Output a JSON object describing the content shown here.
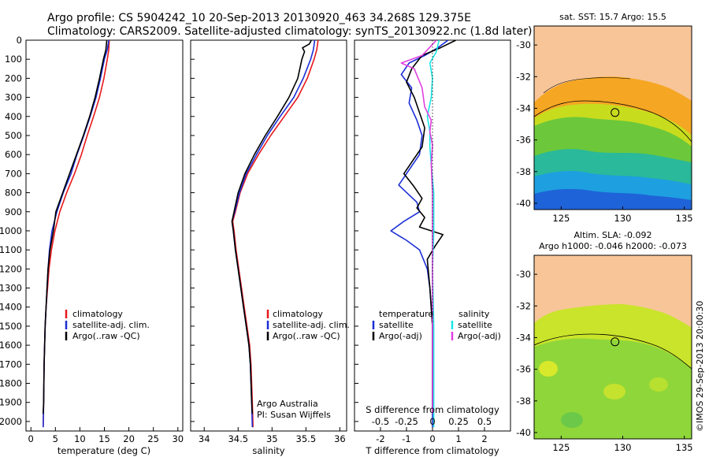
{
  "header": {
    "line1": "Argo profile: CS 5904242_10 20-Sep-2013 20130920_463 34.268S 129.375E",
    "line2": "Climatology: CARS2009. Satellite-adjusted climatology: synTS_20130922.nc (1.8d later)"
  },
  "colors": {
    "climatology": "#e8191b",
    "satellite": "#1c2ed6",
    "argo": "#000000",
    "sal_satellite": "#19e6e6",
    "sal_argo": "#e040e0",
    "land": "#f7c598"
  },
  "chart_data": [
    {
      "id": "temperature",
      "type": "line",
      "xlabel": "temperature (deg C)",
      "ylim": [
        2050,
        0
      ],
      "xlim": [
        -1,
        31
      ],
      "xticks": [
        0,
        5,
        10,
        15,
        20,
        25,
        30
      ],
      "yticks": [
        0,
        100,
        200,
        300,
        400,
        500,
        600,
        700,
        800,
        900,
        1000,
        1100,
        1200,
        1300,
        1400,
        1500,
        1600,
        1700,
        1800,
        1900,
        2000
      ],
      "legend": [
        "climatology",
        "satellite-adj. clim.",
        "Argo(..raw -QC)"
      ],
      "series": [
        {
          "name": "climatology",
          "color": "#e8191b",
          "points": [
            [
              16.0,
              0
            ],
            [
              15.9,
              50
            ],
            [
              15.6,
              100
            ],
            [
              14.9,
              200
            ],
            [
              14.0,
              300
            ],
            [
              12.8,
              400
            ],
            [
              11.5,
              500
            ],
            [
              10.3,
              600
            ],
            [
              8.9,
              700
            ],
            [
              7.3,
              800
            ],
            [
              5.9,
              900
            ],
            [
              4.9,
              1000
            ],
            [
              4.2,
              1100
            ],
            [
              3.7,
              1200
            ],
            [
              3.4,
              1300
            ],
            [
              3.1,
              1400
            ],
            [
              2.9,
              1500
            ],
            [
              2.7,
              1700
            ],
            [
              2.6,
              1900
            ],
            [
              2.5,
              2030
            ]
          ]
        },
        {
          "name": "satellite-adj. clim.",
          "color": "#1c2ed6",
          "points": [
            [
              15.9,
              0
            ],
            [
              15.6,
              50
            ],
            [
              15.0,
              100
            ],
            [
              14.2,
              200
            ],
            [
              13.3,
              300
            ],
            [
              12.1,
              400
            ],
            [
              10.8,
              500
            ],
            [
              9.4,
              600
            ],
            [
              8.2,
              700
            ],
            [
              6.6,
              800
            ],
            [
              5.3,
              900
            ],
            [
              4.3,
              1000
            ],
            [
              3.8,
              1100
            ],
            [
              3.5,
              1200
            ],
            [
              3.3,
              1300
            ],
            [
              3.1,
              1400
            ],
            [
              2.9,
              1500
            ],
            [
              2.7,
              1700
            ],
            [
              2.6,
              1900
            ],
            [
              2.5,
              2030
            ]
          ]
        },
        {
          "name": "Argo(..raw -QC)",
          "color": "#000000",
          "points": [
            [
              15.5,
              0
            ],
            [
              15.3,
              50
            ],
            [
              14.8,
              100
            ],
            [
              14.0,
              200
            ],
            [
              13.1,
              300
            ],
            [
              12.0,
              400
            ],
            [
              10.7,
              500
            ],
            [
              9.3,
              600
            ],
            [
              7.9,
              700
            ],
            [
              6.5,
              800
            ],
            [
              5.1,
              900
            ],
            [
              4.6,
              1000
            ],
            [
              3.9,
              1100
            ],
            [
              3.5,
              1200
            ],
            [
              3.3,
              1300
            ],
            [
              3.1,
              1400
            ],
            [
              2.9,
              1500
            ],
            [
              2.7,
              1700
            ],
            [
              2.6,
              1900
            ],
            [
              2.5,
              1960
            ]
          ]
        }
      ]
    },
    {
      "id": "salinity",
      "type": "line",
      "xlabel": "salinity",
      "ylim": [
        2050,
        0
      ],
      "xlim": [
        33.8,
        36.1
      ],
      "xticks": [
        34,
        34.5,
        35,
        35.5,
        36
      ],
      "legend": [
        "climatology",
        "satellite-adj. clim.",
        "Argo(..raw -QC)"
      ],
      "annotation": [
        "Argo Australia",
        "PI: Susan Wijffels"
      ],
      "series": [
        {
          "name": "climatology",
          "color": "#e8191b",
          "points": [
            [
              35.68,
              0
            ],
            [
              35.66,
              50
            ],
            [
              35.62,
              100
            ],
            [
              35.52,
              200
            ],
            [
              35.38,
              300
            ],
            [
              35.18,
              400
            ],
            [
              34.98,
              500
            ],
            [
              34.8,
              600
            ],
            [
              34.64,
              700
            ],
            [
              34.53,
              800
            ],
            [
              34.46,
              900
            ],
            [
              34.42,
              950
            ],
            [
              34.44,
              1000
            ],
            [
              34.47,
              1100
            ],
            [
              34.51,
              1200
            ],
            [
              34.55,
              1300
            ],
            [
              34.59,
              1400
            ],
            [
              34.63,
              1500
            ],
            [
              34.67,
              1600
            ],
            [
              34.69,
              1700
            ],
            [
              34.71,
              1900
            ],
            [
              34.72,
              2030
            ]
          ]
        },
        {
          "name": "satellite-adj. clim.",
          "color": "#1c2ed6",
          "points": [
            [
              35.63,
              0
            ],
            [
              35.61,
              50
            ],
            [
              35.57,
              100
            ],
            [
              35.46,
              200
            ],
            [
              35.32,
              300
            ],
            [
              35.12,
              400
            ],
            [
              34.93,
              500
            ],
            [
              34.77,
              600
            ],
            [
              34.62,
              700
            ],
            [
              34.52,
              800
            ],
            [
              34.45,
              900
            ],
            [
              34.41,
              950
            ],
            [
              34.43,
              1000
            ],
            [
              34.46,
              1100
            ],
            [
              34.5,
              1200
            ],
            [
              34.54,
              1300
            ],
            [
              34.58,
              1400
            ],
            [
              34.62,
              1500
            ],
            [
              34.66,
              1600
            ],
            [
              34.68,
              1700
            ],
            [
              34.7,
              1900
            ],
            [
              34.71,
              2030
            ]
          ]
        },
        {
          "name": "Argo(..raw -QC)",
          "color": "#000000",
          "points": [
            [
              35.58,
              0
            ],
            [
              35.55,
              20
            ],
            [
              35.45,
              40
            ],
            [
              35.48,
              60
            ],
            [
              35.44,
              100
            ],
            [
              35.38,
              200
            ],
            [
              35.25,
              300
            ],
            [
              35.08,
              400
            ],
            [
              34.9,
              500
            ],
            [
              34.74,
              600
            ],
            [
              34.6,
              700
            ],
            [
              34.5,
              800
            ],
            [
              34.44,
              900
            ],
            [
              34.41,
              950
            ],
            [
              34.43,
              1000
            ],
            [
              34.46,
              1100
            ],
            [
              34.5,
              1200
            ],
            [
              34.54,
              1300
            ],
            [
              34.58,
              1400
            ],
            [
              34.62,
              1500
            ],
            [
              34.66,
              1600
            ],
            [
              34.68,
              1700
            ],
            [
              34.7,
              1900
            ],
            [
              34.71,
              1960
            ]
          ]
        }
      ]
    },
    {
      "id": "differences",
      "type": "line",
      "xlabel": "T difference from climatology",
      "x2label": "S difference from climatology",
      "ylim": [
        2050,
        0
      ],
      "xlim": [
        -3,
        3
      ],
      "xticks": [
        -2,
        -1,
        0,
        1,
        2
      ],
      "x2ticks": [
        "-0.5",
        "-0.25",
        "0",
        "0.25",
        "0.5"
      ],
      "legend_t_title": "temperature",
      "legend_s_title": "salinity",
      "legend_t": [
        "satellite",
        "Argo(-adj)"
      ],
      "legend_s": [
        "satellite",
        "Argo(-adj)"
      ],
      "series": [
        {
          "name": "T satellite",
          "color": "#1c2ed6",
          "points": [
            [
              0.6,
              0
            ],
            [
              0.2,
              40
            ],
            [
              -0.3,
              80
            ],
            [
              -0.9,
              120
            ],
            [
              -1.2,
              180
            ],
            [
              -0.8,
              250
            ],
            [
              -0.9,
              330
            ],
            [
              -0.6,
              420
            ],
            [
              -0.4,
              500
            ],
            [
              -0.5,
              600
            ],
            [
              -1.0,
              700
            ],
            [
              -1.3,
              760
            ],
            [
              -0.6,
              850
            ],
            [
              -0.5,
              900
            ],
            [
              -1.1,
              950
            ],
            [
              -1.6,
              1000
            ],
            [
              -1.0,
              1050
            ],
            [
              -0.5,
              1100
            ],
            [
              -0.2,
              1200
            ],
            [
              -0.1,
              1300
            ],
            [
              0.0,
              1500
            ],
            [
              0.0,
              2030
            ]
          ]
        },
        {
          "name": "T Argo(-adj)",
          "color": "#000000",
          "points": [
            [
              0.9,
              0
            ],
            [
              0.3,
              40
            ],
            [
              -0.4,
              80
            ],
            [
              -0.8,
              150
            ],
            [
              -1.0,
              220
            ],
            [
              -0.7,
              300
            ],
            [
              -0.5,
              380
            ],
            [
              -0.3,
              460
            ],
            [
              -0.4,
              560
            ],
            [
              -0.8,
              640
            ],
            [
              -1.1,
              700
            ],
            [
              -0.7,
              770
            ],
            [
              -0.4,
              830
            ],
            [
              -0.6,
              880
            ],
            [
              -0.3,
              930
            ],
            [
              -0.5,
              980
            ],
            [
              0.4,
              1020
            ],
            [
              0.1,
              1080
            ],
            [
              -0.2,
              1150
            ],
            [
              -0.1,
              1300
            ],
            [
              0.0,
              1500
            ],
            [
              0.0,
              1960
            ]
          ]
        },
        {
          "name": "S satellite",
          "color": "#19e6e6",
          "points": [
            [
              0.25,
              0
            ],
            [
              0.15,
              60
            ],
            [
              -0.1,
              120
            ],
            [
              0.0,
              200
            ],
            [
              -0.05,
              300
            ],
            [
              -0.2,
              400
            ],
            [
              -0.1,
              480
            ],
            [
              -0.1,
              560
            ],
            [
              -0.05,
              650
            ],
            [
              0.05,
              800
            ],
            [
              0.05,
              1000
            ],
            [
              0.0,
              1200
            ],
            [
              0.05,
              1500
            ],
            [
              0.05,
              2030
            ]
          ]
        },
        {
          "name": "S Argo(-adj)",
          "color": "#e040e0",
          "points": [
            [
              0.15,
              0
            ],
            [
              -0.4,
              80
            ],
            [
              -1.2,
              120
            ],
            [
              -0.7,
              150
            ],
            [
              -0.4,
              250
            ],
            [
              -0.3,
              350
            ],
            [
              -0.05,
              420
            ],
            [
              -0.1,
              480
            ],
            [
              0.0,
              550
            ],
            [
              -0.05,
              650
            ],
            [
              0.0,
              800
            ],
            [
              0.0,
              1000
            ],
            [
              0.0,
              1960
            ]
          ]
        }
      ]
    },
    {
      "id": "sst_map",
      "type": "heatmap",
      "title": "sat. SST: 15.7 Argo: 15.5",
      "xticks": [
        125,
        130,
        135
      ],
      "yticks": [
        -30,
        -32,
        -34,
        -36,
        -38,
        -40
      ],
      "xlim": [
        122.8,
        135.6
      ],
      "ylim": [
        -40.4,
        -28.8
      ],
      "marker": {
        "lon": 129.375,
        "lat": -34.268
      }
    },
    {
      "id": "sla_map",
      "type": "heatmap",
      "title1": "Altim. SLA: -0.092",
      "title2": "Argo h1000: -0.046 h2000: -0.073",
      "xticks": [
        125,
        130,
        135
      ],
      "yticks": [
        -30,
        -32,
        -34,
        -36,
        -38,
        -40
      ],
      "xlim": [
        122.8,
        135.6
      ],
      "ylim": [
        -40.4,
        -28.8
      ],
      "marker": {
        "lon": 129.375,
        "lat": -34.268
      }
    }
  ],
  "side_label": "©IMOS 29-Sep-2013 20:00:30"
}
